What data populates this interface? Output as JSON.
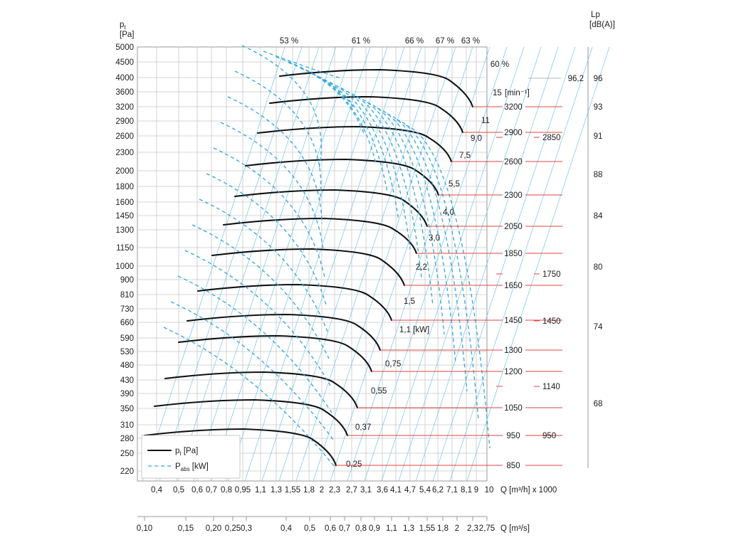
{
  "chart_data": {
    "type": "line",
    "y_axis": {
      "label": "p",
      "label_sub": "t",
      "unit": "[Pa]",
      "ticks": [
        "5000",
        "4500",
        "4000",
        "3600",
        "3200",
        "2900",
        "2600",
        "2300",
        "2000",
        "1800",
        "1600",
        "1450",
        "1300",
        "1150",
        "1000",
        "900",
        "810",
        "730",
        "660",
        "590",
        "530",
        "480",
        "430",
        "390",
        "350",
        "310",
        "280",
        "250",
        "220"
      ]
    },
    "x_axis_flow_h": {
      "label": "Q [m³/h] x 1000",
      "ticks": [
        "0,4",
        "0,5",
        "0,6",
        "0,7",
        "0,8",
        "0,95",
        "1,1",
        "1,3",
        "1,55",
        "1,8",
        "2",
        "2,3",
        "2,7",
        "3,1",
        "3,6",
        "4,1",
        "4,7",
        "5,4",
        "6,2",
        "7,1",
        "8,1",
        "9",
        "10"
      ]
    },
    "x_axis_flow_s": {
      "label": "Q [m³/s]",
      "ticks": [
        "0,10",
        "0,15",
        "0,20",
        "0,25",
        "0,3",
        "0,4",
        "0,5",
        "0,6",
        "0,7",
        "0,8",
        "0,9",
        "1,1",
        "1,3",
        "1,55",
        "1,8",
        "2",
        "2,3",
        "2,75"
      ]
    },
    "lp_axis": {
      "label": "Lp",
      "unit": "[dB(A)]",
      "ticks": [
        "96",
        "93",
        "91",
        "88",
        "84",
        "80",
        "74",
        "68"
      ]
    },
    "efficiency_labels": [
      "53 %",
      "61 %",
      "66 %",
      "67 %",
      "63 %",
      "60 %"
    ],
    "power_labels": [
      "15",
      "11",
      "9,0",
      "7,5",
      "5,5",
      "4,0",
      "3,0",
      "2,2",
      "1,5",
      "1,1 [kW]",
      "0,75",
      "0,55",
      "0,37",
      "0,25"
    ],
    "rpm_unit": "[min⁻¹]",
    "rpm_labels": [
      "3200",
      "2900",
      "2600",
      "2300",
      "2050",
      "1850",
      "1650",
      "1450",
      "1300",
      "1200",
      "1050",
      "950",
      "850"
    ],
    "rpm_labels_right": [
      "96,2",
      "2850",
      "1750",
      "1450",
      "1140",
      "950"
    ],
    "series": [
      {
        "name": "p_t [Pa]",
        "style": "solid",
        "color": "#111111"
      },
      {
        "name": "P_abs [kW]",
        "style": "dashed",
        "color": "#2aa8e0"
      }
    ],
    "legend": {
      "placement": "bottom-left",
      "items": [
        {
          "text": "p",
          "sub": "t",
          "unit": " [Pa]"
        },
        {
          "text": "P",
          "sub": "abs",
          "unit": " [kW]"
        }
      ]
    },
    "curves": [
      {
        "rpm": "3200",
        "power_kW": "15"
      },
      {
        "rpm": "2900",
        "power_kW": "11"
      },
      {
        "rpm": "2600",
        "power_kW": "9,0"
      },
      {
        "rpm": "2300",
        "power_kW": "7,5"
      },
      {
        "rpm": "2050",
        "power_kW": "5,5"
      },
      {
        "rpm": "1850",
        "power_kW": "4,0"
      },
      {
        "rpm": "1650",
        "power_kW": "3,0"
      },
      {
        "rpm": "1450",
        "power_kW": "2,2"
      },
      {
        "rpm": "1300",
        "power_kW": "1,5"
      },
      {
        "rpm": "1200",
        "power_kW": "1,1"
      },
      {
        "rpm": "1050",
        "power_kW": "0,75"
      },
      {
        "rpm": "950",
        "power_kW": "0,55"
      },
      {
        "rpm": "850",
        "power_kW": "0,37"
      }
    ],
    "grid": true
  }
}
